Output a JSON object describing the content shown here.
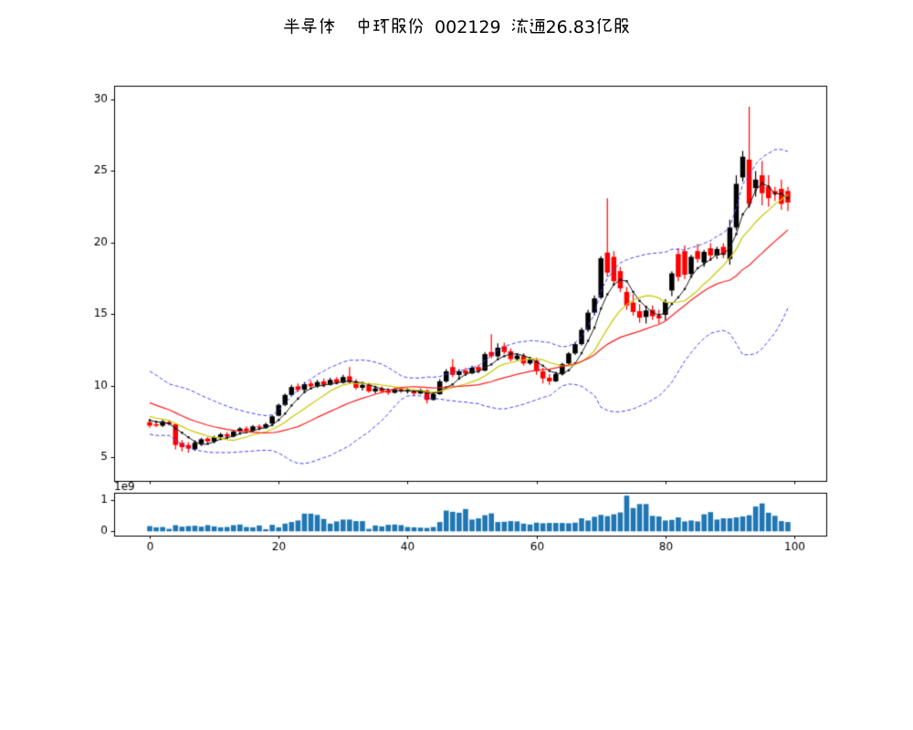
{
  "title": {
    "text": "半导体  中环股份 002129 流通26.83亿股"
  },
  "chart_data": {
    "type": "candlestick",
    "panels": [
      "price",
      "volume"
    ],
    "x_is": "trading-day index 0..99",
    "ohlc": [
      [
        7.45,
        7.65,
        7.05,
        7.2
      ],
      [
        7.3,
        7.5,
        7.1,
        7.2
      ],
      [
        7.2,
        7.6,
        7.1,
        7.5
      ],
      [
        7.45,
        7.6,
        7.2,
        7.3
      ],
      [
        7.3,
        7.35,
        5.55,
        5.85
      ],
      [
        6.0,
        6.2,
        5.4,
        5.7
      ],
      [
        5.85,
        6.05,
        5.3,
        5.6
      ],
      [
        5.55,
        6.1,
        5.45,
        6.0
      ],
      [
        5.95,
        6.35,
        5.85,
        6.25
      ],
      [
        6.3,
        6.4,
        5.9,
        6.1
      ],
      [
        6.1,
        6.5,
        6.0,
        6.4
      ],
      [
        6.4,
        6.7,
        6.3,
        6.6
      ],
      [
        6.6,
        6.75,
        6.35,
        6.45
      ],
      [
        6.45,
        6.9,
        6.4,
        6.8
      ],
      [
        6.8,
        7.1,
        6.7,
        7.0
      ],
      [
        7.0,
        7.15,
        6.75,
        6.85
      ],
      [
        6.85,
        7.25,
        6.8,
        7.15
      ],
      [
        7.15,
        7.3,
        6.95,
        7.05
      ],
      [
        7.05,
        7.4,
        7.0,
        7.3
      ],
      [
        7.35,
        7.95,
        7.3,
        7.85
      ],
      [
        7.9,
        8.75,
        7.85,
        8.65
      ],
      [
        8.65,
        9.45,
        8.55,
        9.35
      ],
      [
        9.35,
        10.05,
        9.25,
        9.9
      ],
      [
        9.95,
        10.15,
        9.55,
        9.7
      ],
      [
        9.7,
        10.25,
        9.6,
        10.1
      ],
      [
        10.15,
        10.35,
        9.8,
        9.95
      ],
      [
        9.95,
        10.4,
        9.85,
        10.25
      ],
      [
        10.3,
        10.5,
        9.9,
        10.05
      ],
      [
        10.05,
        10.55,
        10.0,
        10.4
      ],
      [
        10.45,
        10.6,
        10.1,
        10.2
      ],
      [
        10.2,
        10.75,
        10.15,
        10.6
      ],
      [
        10.65,
        11.3,
        10.15,
        10.25
      ],
      [
        10.25,
        10.45,
        9.7,
        9.85
      ],
      [
        9.85,
        10.2,
        9.65,
        10.05
      ],
      [
        10.05,
        10.2,
        9.5,
        9.6
      ],
      [
        9.6,
        9.95,
        9.45,
        9.8
      ],
      [
        9.8,
        9.95,
        9.5,
        9.6
      ],
      [
        9.65,
        9.8,
        9.35,
        9.5
      ],
      [
        9.5,
        9.85,
        9.45,
        9.75
      ],
      [
        9.75,
        9.9,
        9.5,
        9.6
      ],
      [
        9.6,
        9.85,
        9.45,
        9.7
      ],
      [
        9.65,
        9.75,
        9.3,
        9.45
      ],
      [
        9.45,
        9.8,
        9.4,
        9.7
      ],
      [
        9.65,
        9.75,
        8.75,
        9.0
      ],
      [
        9.0,
        9.5,
        8.95,
        9.4
      ],
      [
        9.4,
        10.45,
        9.35,
        10.3
      ],
      [
        10.3,
        11.15,
        10.2,
        11.0
      ],
      [
        11.3,
        11.85,
        10.6,
        10.75
      ],
      [
        10.75,
        11.15,
        10.55,
        11.0
      ],
      [
        11.05,
        11.25,
        10.7,
        10.85
      ],
      [
        10.85,
        11.4,
        10.8,
        11.25
      ],
      [
        11.3,
        11.45,
        10.9,
        11.05
      ],
      [
        11.05,
        12.35,
        11.0,
        12.2
      ],
      [
        12.35,
        13.6,
        11.9,
        12.05
      ],
      [
        12.05,
        12.95,
        11.95,
        12.65
      ],
      [
        12.75,
        13.0,
        12.2,
        12.35
      ],
      [
        12.4,
        12.6,
        11.7,
        11.85
      ],
      [
        11.85,
        12.25,
        11.75,
        12.1
      ],
      [
        12.05,
        12.25,
        11.4,
        11.55
      ],
      [
        11.55,
        11.95,
        11.45,
        11.8
      ],
      [
        11.75,
        11.95,
        10.75,
        11.0
      ],
      [
        11.0,
        11.25,
        10.15,
        10.5
      ],
      [
        10.55,
        10.8,
        10.05,
        10.3
      ],
      [
        10.3,
        10.9,
        10.25,
        10.8
      ],
      [
        10.8,
        11.6,
        10.7,
        11.5
      ],
      [
        11.55,
        12.35,
        11.45,
        12.25
      ],
      [
        12.25,
        13.05,
        12.15,
        12.9
      ],
      [
        12.9,
        14.05,
        12.8,
        13.9
      ],
      [
        13.9,
        15.3,
        13.75,
        15.1
      ],
      [
        15.1,
        16.3,
        14.9,
        16.1
      ],
      [
        16.15,
        19.05,
        16.05,
        18.9
      ],
      [
        19.3,
        23.1,
        17.6,
        17.9
      ],
      [
        19.0,
        19.4,
        17.1,
        17.3
      ],
      [
        18.0,
        18.3,
        16.55,
        16.8
      ],
      [
        16.55,
        16.9,
        15.3,
        15.6
      ],
      [
        15.8,
        16.4,
        14.9,
        15.15
      ],
      [
        15.2,
        15.7,
        14.4,
        14.75
      ],
      [
        14.8,
        15.45,
        14.35,
        15.25
      ],
      [
        15.3,
        15.6,
        14.6,
        14.85
      ],
      [
        14.9,
        15.3,
        14.35,
        14.7
      ],
      [
        14.95,
        16.05,
        14.55,
        15.85
      ],
      [
        16.65,
        18.0,
        16.25,
        17.85
      ],
      [
        19.2,
        19.6,
        17.3,
        17.6
      ],
      [
        19.4,
        19.8,
        17.45,
        17.75
      ],
      [
        17.8,
        19.15,
        17.6,
        19.0
      ],
      [
        19.4,
        19.9,
        18.6,
        18.85
      ],
      [
        18.6,
        19.5,
        18.3,
        19.35
      ],
      [
        19.6,
        19.95,
        18.8,
        19.1
      ],
      [
        19.1,
        19.7,
        18.85,
        19.55
      ],
      [
        19.7,
        19.95,
        18.9,
        19.15
      ],
      [
        18.85,
        21.6,
        18.45,
        21.05
      ],
      [
        21.05,
        24.7,
        20.85,
        24.1
      ],
      [
        24.55,
        26.4,
        24.25,
        26.0
      ],
      [
        25.8,
        29.5,
        22.4,
        22.7
      ],
      [
        23.8,
        25.0,
        23.2,
        24.4
      ],
      [
        24.7,
        25.7,
        22.6,
        23.45
      ],
      [
        23.9,
        24.7,
        22.5,
        23.1
      ],
      [
        23.6,
        23.9,
        22.9,
        23.4
      ],
      [
        23.75,
        24.4,
        22.3,
        22.7
      ],
      [
        23.6,
        23.9,
        22.2,
        22.8
      ]
    ],
    "volume": [
      0.17,
      0.13,
      0.14,
      0.08,
      0.2,
      0.15,
      0.17,
      0.18,
      0.15,
      0.2,
      0.16,
      0.13,
      0.14,
      0.2,
      0.22,
      0.14,
      0.13,
      0.19,
      0.07,
      0.21,
      0.13,
      0.25,
      0.3,
      0.35,
      0.57,
      0.57,
      0.53,
      0.4,
      0.25,
      0.32,
      0.38,
      0.38,
      0.33,
      0.33,
      0.08,
      0.19,
      0.16,
      0.21,
      0.22,
      0.2,
      0.14,
      0.13,
      0.12,
      0.11,
      0.14,
      0.3,
      0.67,
      0.63,
      0.6,
      0.72,
      0.38,
      0.42,
      0.52,
      0.58,
      0.3,
      0.31,
      0.33,
      0.32,
      0.25,
      0.22,
      0.28,
      0.26,
      0.27,
      0.27,
      0.27,
      0.26,
      0.28,
      0.42,
      0.35,
      0.47,
      0.53,
      0.49,
      0.55,
      0.61,
      1.15,
      0.75,
      0.88,
      0.88,
      0.5,
      0.48,
      0.35,
      0.37,
      0.45,
      0.32,
      0.35,
      0.32,
      0.55,
      0.62,
      0.38,
      0.42,
      0.42,
      0.45,
      0.48,
      0.52,
      0.8,
      0.9,
      0.6,
      0.5,
      0.33,
      0.3
    ],
    "volume_scale": "1e9",
    "seed_closes_before_day0": [
      11.0,
      10.8,
      10.6,
      10.4,
      10.15,
      9.9,
      9.65,
      9.4,
      9.15,
      8.9,
      8.65,
      8.45,
      8.25,
      8.1,
      7.95,
      7.85,
      7.75,
      7.7,
      7.65,
      7.6
    ],
    "overlays": [
      {
        "name": "ma5-close-line",
        "window": 5,
        "color": "#1a1a1a",
        "markers": "square"
      },
      {
        "name": "ma10",
        "window": 10,
        "color": "#c8c800"
      },
      {
        "name": "ma20",
        "window": 20,
        "color": "#ff2020"
      },
      {
        "name": "bollinger-upper",
        "formula": "ma20 + 2*std20",
        "color": "#4444ff",
        "style": "dashed"
      },
      {
        "name": "bollinger-lower",
        "formula": "ma20 - 2*std20",
        "color": "#4444ff",
        "style": "dashed"
      }
    ],
    "price_axis": {
      "ticks": [
        5,
        10,
        15,
        20,
        25,
        30
      ]
    },
    "x_axis": {
      "ticks": [
        0,
        20,
        40,
        60,
        80,
        100
      ]
    },
    "volume_axis": {
      "ticks": [
        0,
        1
      ],
      "offset_label": "1e9"
    },
    "colors": {
      "up": "#000000",
      "down": "#ff0000",
      "volume_bar": "#1f77b4",
      "background": "#ffffff"
    }
  }
}
